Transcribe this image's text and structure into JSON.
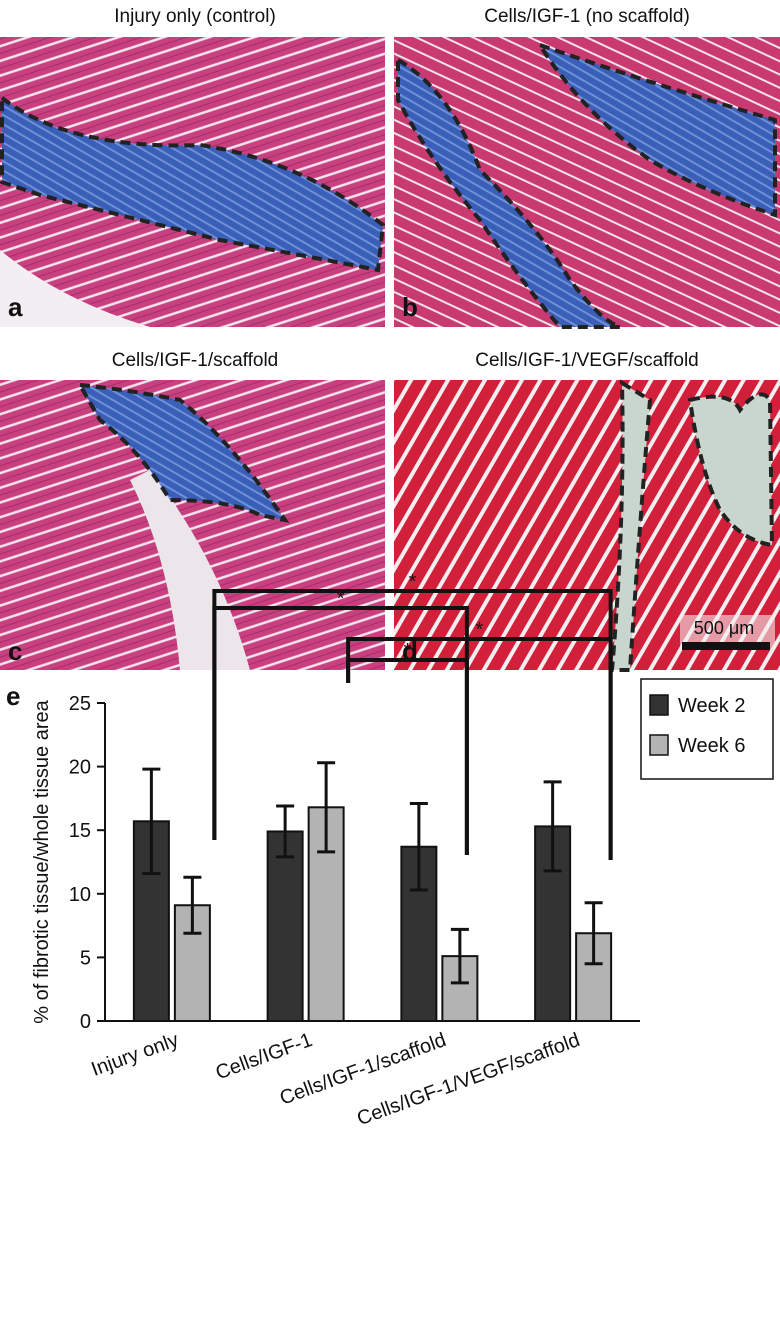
{
  "panels": [
    {
      "title": "Injury only (control)",
      "letter": "a"
    },
    {
      "title": "Cells/IGF-1 (no scaffold)",
      "letter": "b"
    },
    {
      "title": "Cells/IGF-1/scaffold",
      "letter": "c"
    },
    {
      "title": "Cells/IGF-1/VEGF/scaffold",
      "letter": "d"
    }
  ],
  "scale_bar": "500 μm",
  "chart_data": {
    "type": "bar",
    "panel_label": "e",
    "y_label": "% of fibrotic tissue/whole tissue area",
    "categories": [
      "Injury only",
      "Cells/IGF-1",
      "Cells/IGF-1/scaffold",
      "Cells/IGF-1/VEGF/scaffold"
    ],
    "series": [
      {
        "name": "Week 2",
        "color": "#333333",
        "values": [
          15.7,
          14.9,
          13.7,
          15.3
        ],
        "errors": [
          4.1,
          2.0,
          3.4,
          3.5
        ]
      },
      {
        "name": "Week 6",
        "color": "#b3b3b3",
        "values": [
          9.1,
          16.8,
          5.1,
          6.9
        ],
        "errors": [
          2.2,
          3.5,
          2.1,
          2.4
        ]
      }
    ],
    "ylim": [
      0,
      25
    ],
    "yticks": [
      0,
      5,
      10,
      15,
      20,
      25
    ],
    "annotations": [
      "*",
      "*",
      "*",
      "*"
    ]
  }
}
